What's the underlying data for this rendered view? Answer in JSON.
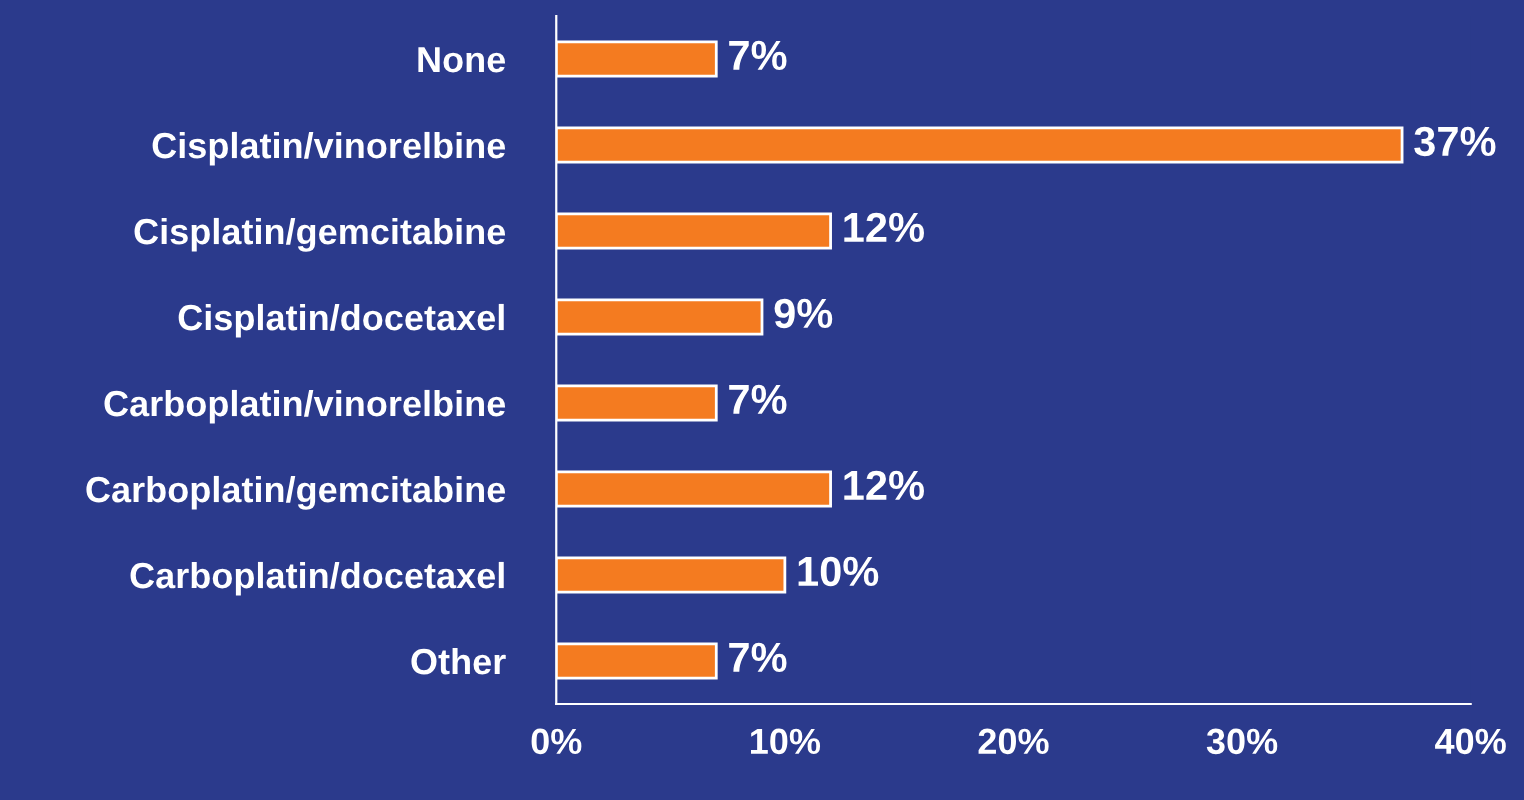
{
  "chart_data": {
    "type": "bar",
    "orientation": "horizontal",
    "categories": [
      "None",
      "Cisplatin/vinorelbine",
      "Cisplatin/gemcitabine",
      "Cisplatin/docetaxel",
      "Carboplatin/vinorelbine",
      "Carboplatin/gemcitabine",
      "Carboplatin/docetaxel",
      "Other"
    ],
    "values": [
      7,
      37,
      12,
      9,
      7,
      12,
      10,
      7
    ],
    "value_labels": [
      "7%",
      "37%",
      "12%",
      "9%",
      "7%",
      "12%",
      "10%",
      "7%"
    ],
    "color": "#f47b20",
    "xlim": [
      0,
      40
    ],
    "xticks": [
      {
        "value": 0,
        "label": "0%"
      },
      {
        "value": 10,
        "label": "10%"
      },
      {
        "value": 20,
        "label": "20%"
      },
      {
        "value": 30,
        "label": "30%"
      },
      {
        "value": 40,
        "label": "40%"
      }
    ],
    "grid": false,
    "legend": false
  }
}
